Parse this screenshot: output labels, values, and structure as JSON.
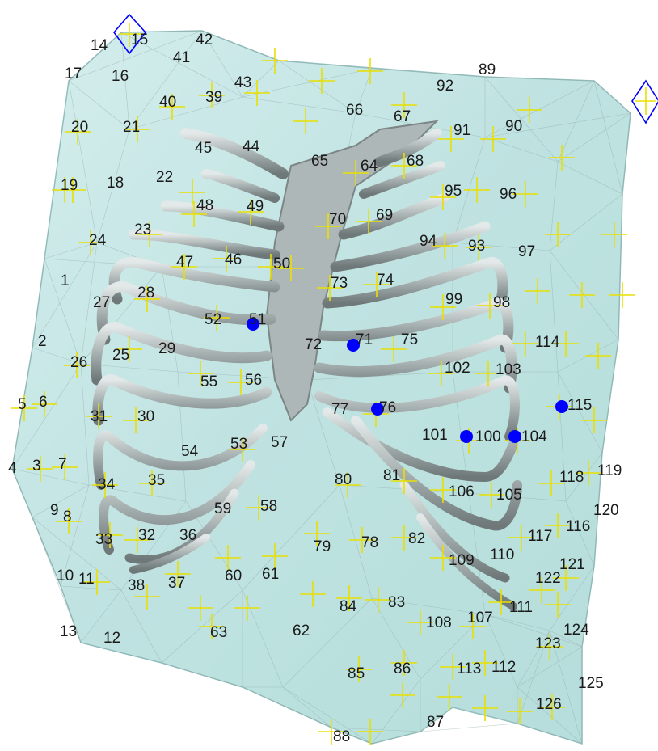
{
  "colors": {
    "surface_fill": "#bfe5e3",
    "surface_edge": "#7fb3b2",
    "bone": "#9aa3a3",
    "bone_highlight": "#d6dcdc",
    "marker_cross": "#e8e000",
    "selected_point": "#0000ff",
    "fiducial": "#0000ff",
    "label_text": "#1a1a1a"
  },
  "figure": {
    "landmark_labels": [
      "1",
      "2",
      "3",
      "4",
      "5",
      "6",
      "7",
      "8",
      "9",
      "10",
      "11",
      "12",
      "13",
      "14",
      "15",
      "16",
      "17",
      "18",
      "19",
      "20",
      "21",
      "22",
      "23",
      "24",
      "25",
      "26",
      "27",
      "28",
      "29",
      "30",
      "31",
      "32",
      "33",
      "34",
      "35",
      "36",
      "37",
      "38",
      "39",
      "40",
      "41",
      "42",
      "43",
      "44",
      "45",
      "46",
      "47",
      "48",
      "49",
      "50",
      "51",
      "52",
      "53",
      "54",
      "55",
      "56",
      "57",
      "58",
      "59",
      "60",
      "61",
      "62",
      "63",
      "64",
      "65",
      "66",
      "67",
      "68",
      "69",
      "70",
      "71",
      "72",
      "73",
      "74",
      "75",
      "76",
      "77",
      "78",
      "79",
      "80",
      "81",
      "82",
      "83",
      "84",
      "85",
      "86",
      "87",
      "88",
      "89",
      "90",
      "91",
      "92",
      "93",
      "94",
      "95",
      "96",
      "97",
      "98",
      "99",
      "100",
      "101",
      "102",
      "103",
      "104",
      "105",
      "106",
      "107",
      "108",
      "109",
      "110",
      "111",
      "112",
      "113",
      "114",
      "115",
      "116",
      "117",
      "118",
      "119",
      "120",
      "121",
      "122",
      "123",
      "124",
      "125",
      "126"
    ],
    "selected_points": [
      "51",
      "71",
      "76",
      "100",
      "104",
      "115"
    ],
    "fiducial_markers": [
      "diamond-top-left",
      "diamond-top-right"
    ]
  }
}
